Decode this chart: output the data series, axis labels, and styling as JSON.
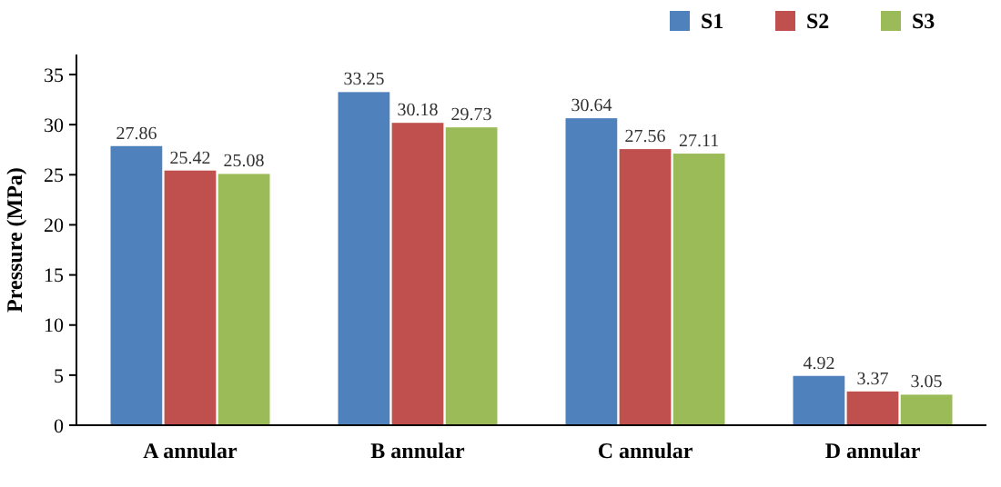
{
  "chart_data": {
    "type": "bar",
    "ylabel": "Pressure (MPa)",
    "categories": [
      "A annular",
      "B annular",
      "C annular",
      "D annular"
    ],
    "series": [
      {
        "name": "S1",
        "color": "#4f81bd",
        "values": [
          27.86,
          33.25,
          30.64,
          4.92
        ]
      },
      {
        "name": "S2",
        "color": "#c0504d",
        "values": [
          25.42,
          30.18,
          27.56,
          3.37
        ]
      },
      {
        "name": "S3",
        "color": "#9bbb59",
        "values": [
          25.08,
          29.73,
          27.11,
          3.05
        ]
      }
    ],
    "ylim": [
      0,
      37
    ],
    "yticks": [
      0,
      5,
      10,
      15,
      20,
      25,
      30,
      35
    ],
    "data_labels": true,
    "legend": "top right",
    "grid": false
  }
}
